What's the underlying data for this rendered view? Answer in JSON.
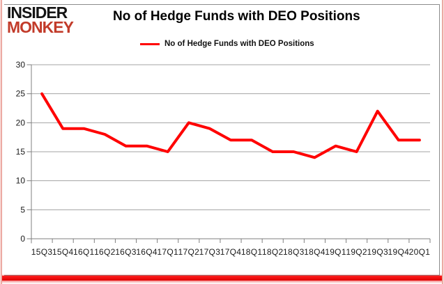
{
  "logo": {
    "line1": "INSIDER",
    "line2": "MONKEY"
  },
  "title": "No of Hedge Funds with DEO Positions",
  "legend": {
    "label": "No of Hedge Funds with DEO Positions"
  },
  "colors": {
    "series_red": "#ff0000",
    "logo_red": "#c23b2a",
    "gridline": "#a3a3a3",
    "axis": "#7f7f7f",
    "tick_label": "#1a1a1a",
    "bottom_bar_red": "#ee0000",
    "border_pink": "#e58c84",
    "frame_grey": "#8c8c8c"
  },
  "chart_data": {
    "type": "line",
    "title": "No of Hedge Funds with DEO Positions",
    "categories": [
      "15Q3",
      "15Q4",
      "16Q1",
      "16Q2",
      "16Q3",
      "16Q4",
      "17Q1",
      "17Q2",
      "17Q3",
      "17Q4",
      "18Q1",
      "18Q2",
      "18Q3",
      "18Q4",
      "19Q1",
      "19Q2",
      "19Q3",
      "19Q4",
      "20Q1"
    ],
    "series": [
      {
        "name": "No of Hedge Funds with DEO Positions",
        "color": "#ff0000",
        "values": [
          25,
          19,
          19,
          18,
          16,
          16,
          15,
          20,
          19,
          17,
          17,
          15,
          15,
          14,
          16,
          15,
          22,
          17,
          17
        ]
      }
    ],
    "xlabel": "",
    "ylabel": "",
    "ylim": [
      0,
      30
    ],
    "yticks": [
      0,
      5,
      10,
      15,
      20,
      25,
      30
    ],
    "grid": true,
    "legend_position": "top-center"
  }
}
